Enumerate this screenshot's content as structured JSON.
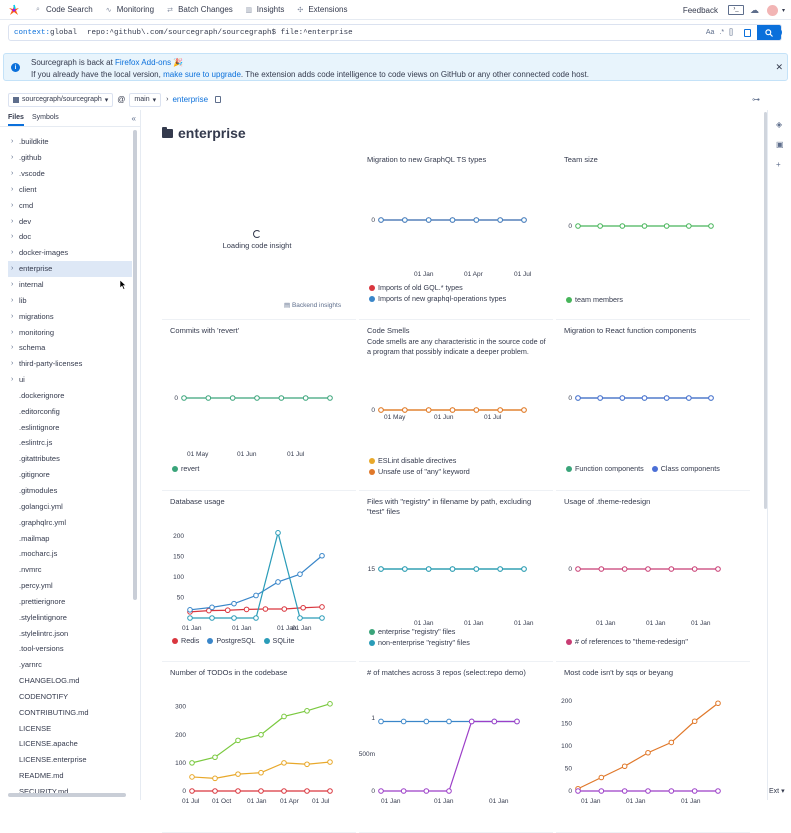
{
  "nav": {
    "items": [
      {
        "label": "Code Search",
        "icon": "search-icon"
      },
      {
        "label": "Monitoring",
        "icon": "monitoring-icon"
      },
      {
        "label": "Batch Changes",
        "icon": "batch-icon"
      },
      {
        "label": "Insights",
        "icon": "insights-icon"
      },
      {
        "label": "Extensions",
        "icon": "puzzle-icon"
      }
    ],
    "feedback": "Feedback"
  },
  "search": {
    "context_kw": "context:",
    "context_val": "global",
    "query": "repo:^github\\.com/sourcegraph/sourcegraph$ file:^enterprise",
    "opt_case": "Aa",
    "opt_regex": ".*",
    "opt_struct": "[]"
  },
  "banner": {
    "l1_pre": "Sourcegraph is back at ",
    "l1_link": "Firefox Add-ons",
    "l1_emoji": "🎉",
    "l2_pre": "If you already have the local version, ",
    "l2_link": "make sure to upgrade",
    "l2_post": ". The extension adds code intelligence to code views on GitHub or any other connected code host."
  },
  "repo": {
    "name": "sourcegraph/sourcegraph",
    "at": "@",
    "rev": "main",
    "path": "enterprise"
  },
  "panel": {
    "tab_files": "Files",
    "tab_symbols": "Symbols"
  },
  "tree": [
    {
      "n": ".buildkite",
      "dir": true
    },
    {
      "n": ".github",
      "dir": true
    },
    {
      "n": ".vscode",
      "dir": true
    },
    {
      "n": "client",
      "dir": true
    },
    {
      "n": "cmd",
      "dir": true
    },
    {
      "n": "dev",
      "dir": true
    },
    {
      "n": "doc",
      "dir": true
    },
    {
      "n": "docker-images",
      "dir": true
    },
    {
      "n": "enterprise",
      "dir": true,
      "sel": true
    },
    {
      "n": "internal",
      "dir": true
    },
    {
      "n": "lib",
      "dir": true
    },
    {
      "n": "migrations",
      "dir": true
    },
    {
      "n": "monitoring",
      "dir": true
    },
    {
      "n": "schema",
      "dir": true
    },
    {
      "n": "third-party-licenses",
      "dir": true
    },
    {
      "n": "ui",
      "dir": true
    },
    {
      "n": ".dockerignore"
    },
    {
      "n": ".editorconfig"
    },
    {
      "n": ".eslintignore"
    },
    {
      "n": ".eslintrc.js"
    },
    {
      "n": ".gitattributes"
    },
    {
      "n": ".gitignore"
    },
    {
      "n": ".gitmodules"
    },
    {
      "n": ".golangci.yml"
    },
    {
      "n": ".graphqlrc.yml"
    },
    {
      "n": ".mailmap"
    },
    {
      "n": ".mocharc.js"
    },
    {
      "n": ".nvmrc"
    },
    {
      "n": ".percy.yml"
    },
    {
      "n": ".prettierignore"
    },
    {
      "n": ".stylelintignore"
    },
    {
      "n": ".stylelintrc.json"
    },
    {
      "n": ".tool-versions"
    },
    {
      "n": ".yarnrc"
    },
    {
      "n": "CHANGELOG.md"
    },
    {
      "n": "CODENOTIFY"
    },
    {
      "n": "CONTRIBUTING.md"
    },
    {
      "n": "LICENSE"
    },
    {
      "n": "LICENSE.apache"
    },
    {
      "n": "LICENSE.enterprise"
    },
    {
      "n": "README.md"
    },
    {
      "n": "SECURITY.md"
    }
  ],
  "page_title": "enterprise",
  "loading": {
    "text": "Loading code insight",
    "backend": "Backend insights"
  },
  "ext_label": "Ext",
  "colors": {
    "blue": "#3a86c9",
    "green": "#47b55a",
    "orange": "#e0782a",
    "red": "#d9363e",
    "teal": "#2a9cb8",
    "purple": "#9c3fc8",
    "pink": "#c83c73",
    "yellow": "#e8a82a"
  },
  "chart_data": [
    {
      "id": "gql",
      "type": "line",
      "title": "Migration to new GraphQL TS types",
      "yticks": [
        "0"
      ],
      "xticks": [
        "01 Jan",
        "01 Apr",
        "01 Jul"
      ],
      "series": [
        {
          "name": "Imports of old GQL.* types",
          "color": "#d9363e",
          "values": [
            0,
            0,
            0,
            0,
            0,
            0,
            0
          ]
        },
        {
          "name": "Imports of new graphql-operations types",
          "color": "#3a86c9",
          "values": [
            0,
            0,
            0,
            0,
            0,
            0,
            0
          ]
        }
      ]
    },
    {
      "id": "team",
      "type": "line",
      "title": "Team size",
      "yticks": [
        "0"
      ],
      "xticks": [],
      "series": [
        {
          "name": "team members",
          "color": "#47b55a",
          "values": [
            0,
            0,
            0,
            0,
            0,
            0,
            0
          ]
        }
      ]
    },
    {
      "id": "revert",
      "type": "line",
      "title": "Commits with 'revert'",
      "yticks": [
        "0"
      ],
      "xticks": [
        "01 May",
        "01 Jun",
        "01 Jul"
      ],
      "series": [
        {
          "name": "revert",
          "color": "#3aa47a",
          "values": [
            0,
            0,
            0,
            0,
            0,
            0,
            0
          ]
        }
      ]
    },
    {
      "id": "smells",
      "type": "line",
      "title": "Code Smells",
      "description": "Code smells are any characteristic in the source code of a program that possibly indicate a deeper problem.",
      "yticks": [
        "0"
      ],
      "xticks": [
        "01 May",
        "01 Jun",
        "01 Jul"
      ],
      "series": [
        {
          "name": "ESLint disable directives",
          "color": "#e8a82a",
          "values": [
            0,
            0,
            0,
            0,
            0,
            0,
            0
          ]
        },
        {
          "name": "Unsafe use of \"any\" keyword",
          "color": "#e0782a",
          "values": [
            0,
            0,
            0,
            0,
            0,
            0,
            0
          ]
        }
      ]
    },
    {
      "id": "react",
      "type": "line",
      "title": "Migration to React function components",
      "yticks": [
        "0"
      ],
      "xticks": [],
      "series": [
        {
          "name": "Function components",
          "color": "#3aa47a",
          "values": [
            0,
            0,
            0,
            0,
            0,
            0,
            0
          ]
        },
        {
          "name": "Class components",
          "color": "#4b6fd6",
          "values": [
            0,
            0,
            0,
            0,
            0,
            0,
            0
          ]
        }
      ]
    },
    {
      "id": "db",
      "type": "line",
      "title": "Database usage",
      "yticks": [
        "200",
        "150",
        "100",
        "50"
      ],
      "xticks": [
        "01 Jan",
        "01 Jan",
        "01 Jan",
        "01 Jan"
      ],
      "series": [
        {
          "name": "Redis",
          "color": "#d9363e",
          "values": [
            15,
            18,
            19,
            21,
            22,
            22,
            25,
            27
          ]
        },
        {
          "name": "PostgreSQL",
          "color": "#3a86c9",
          "values": [
            20,
            26,
            35,
            55,
            88,
            107,
            152
          ]
        },
        {
          "name": "SQLite",
          "color": "#2a9cb8",
          "values": [
            0,
            0,
            0,
            0,
            208,
            0,
            0
          ]
        }
      ]
    },
    {
      "id": "registry",
      "type": "line",
      "title": "Files with \"registry\" in filename by path, excluding \"test\" files",
      "yticks": [
        "15"
      ],
      "xticks": [
        "01 Jan",
        "01 Jan",
        "01 Jan"
      ],
      "series": [
        {
          "name": "enterprise \"registry\" files",
          "color": "#3aa47a",
          "values": [
            15,
            15,
            15,
            15,
            15,
            15,
            15
          ]
        },
        {
          "name": "non-enterprise \"registry\" files",
          "color": "#2a9cb8",
          "values": [
            15,
            15,
            15,
            15,
            15,
            15,
            15
          ]
        }
      ]
    },
    {
      "id": "theme",
      "type": "line",
      "title": "Usage of .theme-redesign",
      "yticks": [
        "0"
      ],
      "xticks": [
        "01 Jan",
        "01 Jan",
        "01 Jan"
      ],
      "series": [
        {
          "name": "# of references to \"theme-redesign\"",
          "color": "#c83c73",
          "values": [
            0,
            0,
            0,
            0,
            0,
            0,
            0
          ]
        }
      ]
    },
    {
      "id": "todos",
      "type": "line",
      "title": "Number of TODOs in the codebase",
      "yticks": [
        "300",
        "200",
        "100",
        "0"
      ],
      "xticks": [
        "01 Jul",
        "01 Oct",
        "01 Jan",
        "01 Apr",
        "01 Jul"
      ],
      "series": [
        {
          "name": "",
          "color": "#7ac93f",
          "values": [
            100,
            120,
            180,
            200,
            265,
            285,
            310
          ]
        },
        {
          "name": "",
          "color": "#e8a82a",
          "values": [
            50,
            45,
            60,
            65,
            100,
            95,
            103
          ]
        },
        {
          "name": "",
          "color": "#d9363e",
          "values": [
            0,
            0,
            0,
            0,
            0,
            0,
            0
          ]
        }
      ]
    },
    {
      "id": "matches",
      "type": "line",
      "title": "# of matches across 3 repos (select:repo demo)",
      "yticks": [
        "1",
        "500m",
        "0"
      ],
      "xticks": [
        "01 Jan",
        "01 Jan",
        "01 Jan"
      ],
      "series": [
        {
          "name": "",
          "color": "#3a86c9",
          "values": [
            1,
            1,
            1,
            1,
            1,
            1,
            1
          ]
        },
        {
          "name": "",
          "color": "#9c3fc8",
          "values": [
            0,
            0,
            0,
            0,
            1,
            1,
            1
          ]
        }
      ]
    },
    {
      "id": "sqs",
      "type": "line",
      "title": "Most code isn't by sqs or beyang",
      "yticks": [
        "200",
        "150",
        "100",
        "50",
        "0"
      ],
      "xticks": [
        "01 Jan",
        "01 Jan",
        "01 Jan"
      ],
      "series": [
        {
          "name": "",
          "color": "#e0782a",
          "values": [
            5,
            30,
            55,
            85,
            108,
            155,
            195
          ]
        },
        {
          "name": "",
          "color": "#9c3fc8",
          "values": [
            0,
            0,
            0,
            0,
            0,
            0,
            0
          ]
        }
      ]
    }
  ]
}
